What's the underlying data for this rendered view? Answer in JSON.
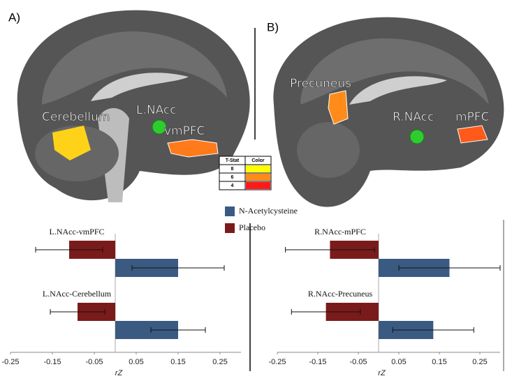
{
  "chart_data": [
    {
      "type": "hbar",
      "panel": "A)",
      "categories": [
        "L.NAcc-vmPFC",
        "L.NAcc-Cerebellum"
      ],
      "series": [
        {
          "name": "N-Acetylcysteine",
          "color": "#3b5a82",
          "values": [
            0.15,
            0.15
          ],
          "errors": [
            0.11,
            0.065
          ]
        },
        {
          "name": "Placebo",
          "color": "#7a1b1b",
          "values": [
            -0.11,
            -0.09
          ],
          "errors": [
            0.08,
            0.065
          ]
        }
      ],
      "xlabel": "rZ",
      "xlim": [
        -0.25,
        0.3
      ],
      "xticks": [
        -0.25,
        -0.15,
        -0.05,
        0.05,
        0.15,
        0.25
      ],
      "annotations": [
        "Cerebellum",
        "L.NAcc",
        "vmPFC"
      ]
    },
    {
      "type": "hbar",
      "panel": "B)",
      "categories": [
        "R.NAcc-mPFC",
        "R.NAcc-Precuneus"
      ],
      "series": [
        {
          "color": "#3b5a82",
          "values": [
            0.175,
            0.135
          ],
          "errors": [
            0.125,
            0.1
          ]
        },
        {
          "color": "#7a1b1b",
          "values": [
            -0.12,
            -0.13
          ],
          "errors": [
            0.11,
            0.085
          ]
        }
      ],
      "xlabel": "rZ",
      "xlim": [
        -0.25,
        0.3
      ],
      "xticks": [
        -0.25,
        -0.15,
        -0.05,
        0.05,
        0.15,
        0.25
      ],
      "annotations": [
        "Precuneus",
        "R.NAcc",
        "mPFC"
      ]
    }
  ],
  "tstat_legend": {
    "headers": [
      "T-Stat",
      "Color"
    ],
    "rows": [
      8,
      6,
      4
    ],
    "colors": [
      "#ffff00",
      "#ff8c1a",
      "#ff1a1a"
    ]
  }
}
